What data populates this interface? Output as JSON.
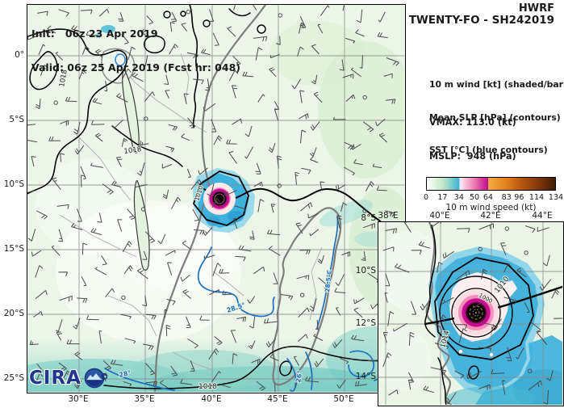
{
  "header": {
    "model": "HWRF",
    "storm_id": "TWENTY-FO - SH242019",
    "init_line": "Init:   06z 23 Apr 2019",
    "valid_line": "Valid: 06z 25 Apr 2019 (Fcst hr: 048)"
  },
  "legend": {
    "shading": "10 m wind [kt] (shaded/barb)",
    "contours": "Mean SLP [hPa] (contours)",
    "sst": "SST [°C] (blue contours)",
    "vmax": "VMAX: 113.0 (kt)",
    "mslp": "MSLP:  948 (hPa)"
  },
  "storm": {
    "vmax_kt": 113.0,
    "mslp_hpa": 948
  },
  "colorbar": {
    "label": "10 m wind speed (kt)",
    "min": 0,
    "max": 134,
    "ticks": [
      "0",
      "17",
      "34",
      "50",
      "64",
      "83",
      "96",
      "114",
      "134"
    ]
  },
  "main_map": {
    "lon_labels": [
      "30°E",
      "35°E",
      "40°E",
      "45°E",
      "50°E"
    ],
    "lat_labels": [
      "0°",
      "5°S",
      "10°S",
      "15°S",
      "20°S",
      "25°S"
    ],
    "slp_labels": [
      "1018",
      "1018",
      "1018",
      "1010"
    ],
    "sst_labels": [
      "28.5°",
      "28°",
      "26°",
      "28.5°C"
    ]
  },
  "inset_map": {
    "lon_labels": [
      "38°E",
      "40°E",
      "42°E",
      "44°E"
    ],
    "lat_labels": [
      "8°S",
      "10°S",
      "12°S",
      "14°S"
    ],
    "slp_labels": [
      "1010",
      "1000",
      "1014"
    ]
  },
  "logo": {
    "text": "CIRA"
  },
  "colors": {
    "land": "#ecf6e8",
    "coast": "#7d7d7d",
    "sst_blue": "#1d6fc0",
    "barb": "#4a4a4a",
    "wind_cyan": "#3eb1dc",
    "wind_pink": "#f59cc0",
    "wind_magenta": "#c50d93",
    "teal_shade": "#6ec8be"
  },
  "barbs": {
    "seed": 20190425
  }
}
